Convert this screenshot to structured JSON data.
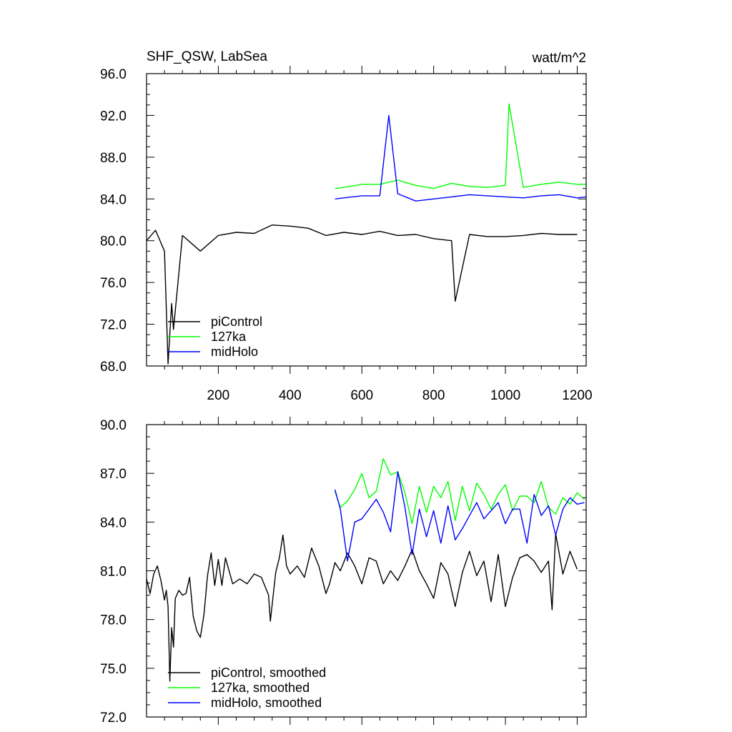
{
  "colors": {
    "piControl": "#000000",
    "127ka": "#00ff00",
    "midHolo": "#0000ff"
  },
  "chart_data": [
    {
      "type": "line",
      "title": "SHF_QSW, LabSea",
      "units": "watt/m^2",
      "xlim": [
        0,
        1225
      ],
      "ylim": [
        68,
        96
      ],
      "xticks": [
        200,
        400,
        600,
        800,
        1000,
        1200
      ],
      "xtick_labels": [
        "200",
        "400",
        "600",
        "800",
        "1000",
        "1200"
      ],
      "yticks": [
        68,
        72,
        76,
        80,
        84,
        88,
        92,
        96
      ],
      "ytick_labels": [
        "68.0",
        "72.0",
        "76.0",
        "80.0",
        "84.0",
        "88.0",
        "92.0",
        "96.0"
      ],
      "legend": "bottom-left",
      "series": [
        {
          "name": "piControl",
          "color": "#000000",
          "x": [
            0,
            25,
            50,
            60,
            70,
            75,
            100,
            150,
            200,
            250,
            300,
            350,
            400,
            450,
            500,
            550,
            600,
            650,
            700,
            750,
            800,
            850,
            860,
            900,
            950,
            1000,
            1050,
            1100,
            1150,
            1200
          ],
          "values": [
            80,
            81,
            79,
            68.2,
            74,
            71.5,
            80.5,
            79,
            80.5,
            80.8,
            80.7,
            81.5,
            81.4,
            81.2,
            80.5,
            80.8,
            80.6,
            80.9,
            80.5,
            80.6,
            80.2,
            80,
            74.2,
            80.6,
            80.4,
            80.4,
            80.5,
            80.7,
            80.6,
            80.6
          ]
        },
        {
          "name": "127ka",
          "color": "#00ff00",
          "x": [
            525,
            550,
            600,
            650,
            700,
            750,
            800,
            850,
            900,
            950,
            1000,
            1010,
            1050,
            1100,
            1150,
            1200,
            1225
          ],
          "values": [
            85,
            85.1,
            85.4,
            85.4,
            85.8,
            85.3,
            85,
            85.5,
            85.2,
            85.1,
            85.3,
            93.1,
            85.1,
            85.4,
            85.6,
            85.4,
            85.4
          ]
        },
        {
          "name": "midHolo",
          "color": "#0000ff",
          "x": [
            525,
            550,
            600,
            650,
            675,
            700,
            750,
            800,
            850,
            900,
            950,
            1000,
            1050,
            1100,
            1150,
            1200,
            1225
          ],
          "values": [
            84,
            84.1,
            84.3,
            84.3,
            92,
            84.5,
            83.8,
            84,
            84.2,
            84.4,
            84.3,
            84.2,
            84.1,
            84.3,
            84.4,
            84.1,
            84.2
          ]
        }
      ]
    },
    {
      "type": "line",
      "xlim": [
        0,
        1225
      ],
      "ylim": [
        72,
        90
      ],
      "xticks": [
        200,
        400,
        600,
        800,
        1000,
        1200
      ],
      "yticks": [
        72,
        75,
        78,
        81,
        84,
        87,
        90
      ],
      "ytick_labels": [
        "72.0",
        "75.0",
        "78.0",
        "81.0",
        "84.0",
        "87.0",
        "90.0"
      ],
      "legend": "bottom-left",
      "series": [
        {
          "name": "piControl, smoothed",
          "color": "#000000",
          "x": [
            0,
            10,
            20,
            30,
            40,
            50,
            55,
            60,
            65,
            70,
            75,
            80,
            90,
            100,
            110,
            120,
            130,
            140,
            150,
            160,
            170,
            180,
            190,
            200,
            210,
            220,
            240,
            260,
            280,
            300,
            320,
            340,
            345,
            360,
            370,
            380,
            390,
            400,
            420,
            440,
            460,
            480,
            500,
            510,
            525,
            540,
            560,
            580,
            600,
            620,
            640,
            660,
            680,
            700,
            720,
            740,
            760,
            780,
            800,
            820,
            840,
            860,
            880,
            900,
            920,
            940,
            960,
            980,
            1000,
            1020,
            1040,
            1060,
            1080,
            1100,
            1120,
            1130,
            1140,
            1160,
            1180,
            1200
          ],
          "values": [
            80.5,
            79.6,
            80.8,
            81.3,
            80.4,
            79.2,
            79.8,
            78.8,
            74.2,
            77.5,
            76.3,
            79.3,
            79.8,
            79.5,
            79.6,
            80.6,
            78.2,
            77.3,
            76.9,
            78.3,
            80.7,
            82.1,
            80.1,
            81.7,
            80.1,
            81.8,
            80.2,
            80.5,
            80.2,
            80.8,
            80.6,
            79.5,
            77.9,
            80.9,
            81.8,
            83.2,
            81.3,
            80.8,
            81.3,
            80.6,
            82.4,
            81.3,
            79.6,
            80.2,
            81.5,
            81.0,
            82.1,
            81.3,
            80.2,
            81.8,
            81.6,
            80.2,
            81.0,
            80.4,
            81.3,
            82.3,
            81.0,
            80.2,
            79.3,
            81.5,
            80.8,
            78.8,
            80.9,
            82.2,
            80.7,
            81.6,
            79.1,
            82.0,
            78.8,
            80.6,
            81.8,
            82.0,
            81.6,
            80.9,
            81.6,
            78.6,
            83.3,
            80.8,
            82.2,
            81.1
          ]
        },
        {
          "name": "127ka, smoothed",
          "color": "#00ff00",
          "x": [
            525,
            540,
            560,
            580,
            600,
            620,
            640,
            660,
            680,
            700,
            720,
            740,
            760,
            780,
            800,
            820,
            840,
            860,
            880,
            900,
            920,
            940,
            960,
            980,
            1000,
            1020,
            1040,
            1060,
            1080,
            1100,
            1120,
            1140,
            1160,
            1180,
            1200,
            1220
          ],
          "values": [
            85.9,
            84.9,
            85.3,
            86.0,
            87.0,
            85.5,
            85.9,
            87.9,
            86.9,
            87.1,
            85.8,
            83.9,
            86.2,
            84.6,
            86.2,
            85.5,
            86.5,
            84.1,
            86.2,
            84.7,
            86.4,
            85.7,
            84.8,
            85.7,
            86.3,
            84.7,
            85.6,
            85.6,
            85.2,
            86.5,
            84.9,
            84.5,
            85.5,
            85.1,
            85.8,
            85.4
          ]
        },
        {
          "name": "midHolo, smoothed",
          "color": "#0000ff",
          "x": [
            525,
            540,
            560,
            580,
            600,
            620,
            640,
            660,
            680,
            700,
            720,
            740,
            760,
            780,
            800,
            820,
            840,
            860,
            880,
            900,
            920,
            940,
            960,
            980,
            1000,
            1020,
            1040,
            1060,
            1080,
            1100,
            1120,
            1140,
            1160,
            1180,
            1200,
            1220
          ],
          "values": [
            86.0,
            84.8,
            81.6,
            84.0,
            84.2,
            84.8,
            85.4,
            84.6,
            83.4,
            87.1,
            84.9,
            82.0,
            84.8,
            83.1,
            84.7,
            82.7,
            85.0,
            82.9,
            83.6,
            84.4,
            85.2,
            84.2,
            84.7,
            85.2,
            83.9,
            84.8,
            84.8,
            82.7,
            85.7,
            84.4,
            85.0,
            83.2,
            84.8,
            85.5,
            85.1,
            85.2
          ]
        }
      ]
    }
  ]
}
